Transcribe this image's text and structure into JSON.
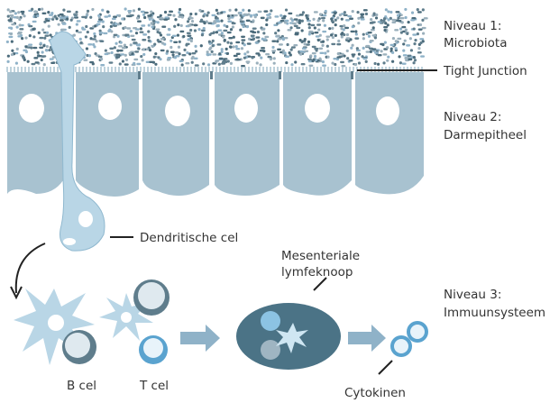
{
  "levels": [
    {
      "title": "Niveau 1:",
      "name": "Microbiota"
    },
    {
      "title": "Niveau 2:",
      "name": "Darmepitheel"
    },
    {
      "title": "Niveau 3:",
      "name": "Immuunsysteem"
    }
  ],
  "labels": {
    "tight_junction": "Tight Junction",
    "dendritic_cell": "Dendritische cel",
    "lymph_node": [
      "Mesenteriale",
      "lymfeknoop"
    ],
    "b_cell": "B cel",
    "t_cell": "T cel",
    "cytokines": "Cytokinen"
  }
}
